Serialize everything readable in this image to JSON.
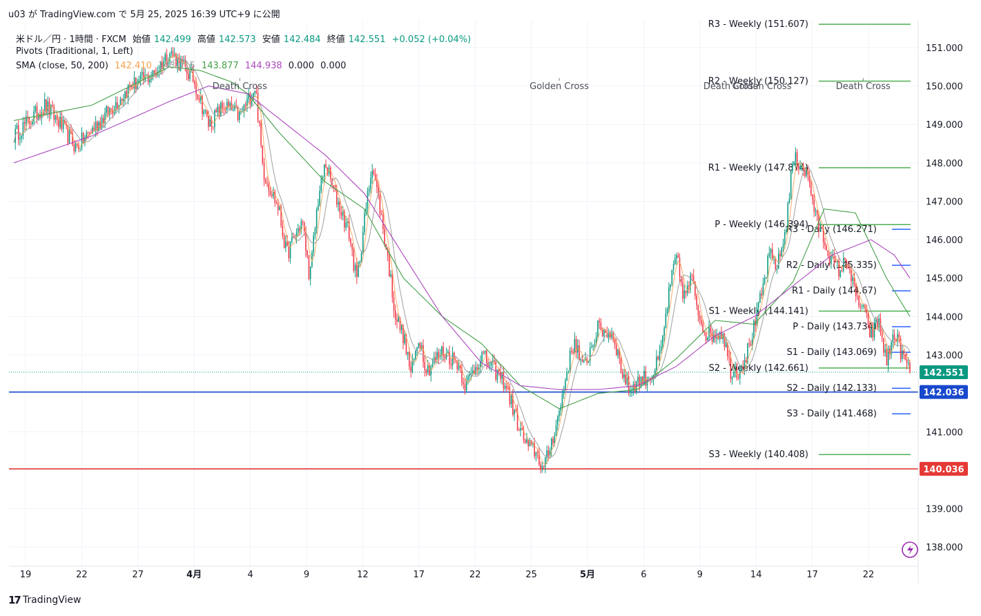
{
  "published": "u03 が TradingView.com で 5月 25, 2025 16:39 UTC+9 に公開",
  "legend": {
    "symbol": "米ドル／円 · 1時間 · FXCM",
    "open_label": "始値",
    "open": "142.499",
    "high_label": "高値",
    "high": "142.573",
    "low_label": "安値",
    "low": "142.484",
    "close_label": "終値",
    "close": "142.551",
    "change": "+0.052 (+0.04%)",
    "pivots": "Pivots (Traditional, 1, Left)",
    "sma": "SMA (close, 50, 200)",
    "sma_values": [
      "142.410",
      "143.015",
      "143.877",
      "144.938",
      "0.000",
      "0.000"
    ]
  },
  "footer": {
    "brand": "TradingView"
  },
  "colors": {
    "up": "#089981",
    "down": "#f23645",
    "pivot_weekly": "#4caf50",
    "pivot_daily": "#2962ff",
    "sma_fast": "#f7a04a",
    "sma_mid": "#9e9e9e",
    "sma_50": "#43a047",
    "sma_200": "#ab47bc",
    "support_line": "#1848cc",
    "red_line": "#e53935",
    "price_badge": "#089981"
  },
  "chart_data": {
    "type": "candlestick",
    "title": "米ドル／円 · 1時間 · FXCM",
    "ylim": [
      137.5,
      151.7
    ],
    "y_ticks": [
      "151.000",
      "150.000",
      "149.000",
      "148.000",
      "147.000",
      "146.000",
      "145.000",
      "144.000",
      "143.000",
      "142.000",
      "141.000",
      "140.000",
      "139.000",
      "138.000"
    ],
    "x_ticks": [
      {
        "label": "19",
        "bold": false
      },
      {
        "label": "22",
        "bold": false
      },
      {
        "label": "27",
        "bold": false
      },
      {
        "label": "4月",
        "bold": true
      },
      {
        "label": "4",
        "bold": false
      },
      {
        "label": "9",
        "bold": false
      },
      {
        "label": "12",
        "bold": false
      },
      {
        "label": "17",
        "bold": false
      },
      {
        "label": "22",
        "bold": false
      },
      {
        "label": "25",
        "bold": false
      },
      {
        "label": "5月",
        "bold": true
      },
      {
        "label": "6",
        "bold": false
      },
      {
        "label": "9",
        "bold": false
      },
      {
        "label": "14",
        "bold": false
      },
      {
        "label": "17",
        "bold": false
      },
      {
        "label": "22",
        "bold": false
      }
    ],
    "price_path": [
      [
        0,
        148.7
      ],
      [
        4,
        149.5
      ],
      [
        6,
        149.0
      ],
      [
        8,
        148.4
      ],
      [
        12,
        149.3
      ],
      [
        15,
        150.0
      ],
      [
        18,
        150.3
      ],
      [
        20,
        150.9
      ],
      [
        23,
        150.2
      ],
      [
        25,
        149.0
      ],
      [
        27,
        149.5
      ],
      [
        29,
        149.2
      ],
      [
        31,
        150.0
      ],
      [
        32,
        147.8
      ],
      [
        34,
        146.8
      ],
      [
        35,
        145.6
      ],
      [
        37,
        146.5
      ],
      [
        38,
        145.0
      ],
      [
        39,
        147.0
      ],
      [
        40,
        148.0
      ],
      [
        41,
        147.3
      ],
      [
        43,
        146.2
      ],
      [
        44,
        144.9
      ],
      [
        45,
        146.5
      ],
      [
        46,
        148.0
      ],
      [
        47,
        146.8
      ],
      [
        48,
        145.5
      ],
      [
        49,
        144.0
      ],
      [
        50,
        143.5
      ],
      [
        51,
        142.5
      ],
      [
        52,
        143.5
      ],
      [
        53,
        142.6
      ],
      [
        55,
        143.1
      ],
      [
        57,
        142.8
      ],
      [
        58,
        142.2
      ],
      [
        60,
        143.0
      ],
      [
        63,
        142.3
      ],
      [
        65,
        141.0
      ],
      [
        66,
        140.6
      ],
      [
        67,
        140.5
      ],
      [
        68,
        140.0
      ],
      [
        70,
        141.5
      ],
      [
        71,
        142.6
      ],
      [
        72,
        143.4
      ],
      [
        73,
        142.6
      ],
      [
        75,
        143.7
      ],
      [
        77,
        143.5
      ],
      [
        78,
        142.6
      ],
      [
        79,
        142.1
      ],
      [
        80,
        142.3
      ],
      [
        82,
        142.5
      ],
      [
        83,
        143.0
      ],
      [
        84,
        144.5
      ],
      [
        85,
        145.6
      ],
      [
        86,
        144.5
      ],
      [
        87,
        145.0
      ],
      [
        88,
        144.0
      ],
      [
        89,
        143.5
      ],
      [
        91,
        143.6
      ],
      [
        92,
        142.6
      ],
      [
        93,
        142.6
      ],
      [
        94,
        143.0
      ],
      [
        95,
        143.7
      ],
      [
        96,
        144.6
      ],
      [
        97,
        145.6
      ],
      [
        98,
        145.3
      ],
      [
        99,
        146.2
      ],
      [
        100,
        148.1
      ],
      [
        101,
        148.0
      ],
      [
        102,
        147.6
      ],
      [
        103,
        146.5
      ],
      [
        104,
        146.0
      ],
      [
        105,
        145.4
      ],
      [
        106,
        145.2
      ],
      [
        107,
        145.5
      ],
      [
        108,
        144.5
      ],
      [
        109,
        144.2
      ],
      [
        110,
        143.5
      ],
      [
        111,
        143.9
      ],
      [
        112,
        142.8
      ],
      [
        113,
        143.6
      ],
      [
        114,
        143.0
      ],
      [
        115,
        142.55
      ]
    ],
    "sma_50": [
      [
        0,
        149.1
      ],
      [
        10,
        149.5
      ],
      [
        20,
        150.5
      ],
      [
        24,
        150.4
      ],
      [
        28,
        150.1
      ],
      [
        30,
        149.8
      ],
      [
        34,
        148.8
      ],
      [
        40,
        147.5
      ],
      [
        45,
        146.8
      ],
      [
        50,
        145.0
      ],
      [
        55,
        144.0
      ],
      [
        60,
        143.3
      ],
      [
        65,
        142.2
      ],
      [
        70,
        141.6
      ],
      [
        75,
        142.0
      ],
      [
        80,
        142.1
      ],
      [
        85,
        142.9
      ],
      [
        90,
        143.9
      ],
      [
        95,
        143.8
      ],
      [
        100,
        144.9
      ],
      [
        104,
        146.8
      ],
      [
        108,
        146.7
      ],
      [
        112,
        145.0
      ],
      [
        115,
        144.0
      ]
    ],
    "sma_200": [
      [
        0,
        148.0
      ],
      [
        10,
        148.7
      ],
      [
        20,
        149.6
      ],
      [
        25,
        150.0
      ],
      [
        30,
        149.8
      ],
      [
        35,
        149.0
      ],
      [
        40,
        148.2
      ],
      [
        45,
        147.2
      ],
      [
        50,
        145.6
      ],
      [
        55,
        144.0
      ],
      [
        60,
        142.8
      ],
      [
        65,
        142.2
      ],
      [
        70,
        142.1
      ],
      [
        75,
        142.1
      ],
      [
        80,
        142.2
      ],
      [
        85,
        142.7
      ],
      [
        90,
        143.5
      ],
      [
        95,
        144.0
      ],
      [
        100,
        144.8
      ],
      [
        105,
        145.6
      ],
      [
        110,
        146.0
      ],
      [
        113,
        145.6
      ],
      [
        115,
        145.0
      ]
    ],
    "pivots": [
      {
        "label": "R3 - Weekly (151.607)",
        "value": 151.607,
        "group": "weekly"
      },
      {
        "label": "R2 - Weekly (150.127)",
        "value": 150.127,
        "group": "weekly"
      },
      {
        "label": "R1 - Weekly (147.874)",
        "value": 147.874,
        "group": "weekly"
      },
      {
        "label": "P - Weekly (146.394)",
        "value": 146.394,
        "group": "weekly"
      },
      {
        "label": "S1 - Weekly (144.141)",
        "value": 144.141,
        "group": "weekly"
      },
      {
        "label": "S2 - Weekly (142.661)",
        "value": 142.661,
        "group": "weekly"
      },
      {
        "label": "S3 - Weekly (140.408)",
        "value": 140.408,
        "group": "weekly"
      },
      {
        "label": "R3 - Daily (146.271)",
        "value": 146.271,
        "group": "daily"
      },
      {
        "label": "R2 - Daily (145.335)",
        "value": 145.335,
        "group": "daily"
      },
      {
        "label": "R1 - Daily (144.67)",
        "value": 144.67,
        "group": "daily"
      },
      {
        "label": "P - Daily (143.734)",
        "value": 143.734,
        "group": "daily"
      },
      {
        "label": "S1 - Daily (143.069)",
        "value": 143.069,
        "group": "daily"
      },
      {
        "label": "S2 - Daily (142.133)",
        "value": 142.133,
        "group": "daily"
      },
      {
        "label": "S3 - Daily (141.468)",
        "value": 141.468,
        "group": "daily"
      }
    ],
    "horizontal_lines": [
      {
        "value": 142.036,
        "label": "142.036",
        "color": "#1848cc"
      },
      {
        "value": 140.036,
        "label": "140.036",
        "color": "#e53935"
      }
    ],
    "last_price": {
      "value": 142.551,
      "label": "142.551"
    },
    "events": [
      {
        "label": "Death Cross",
        "x": 29
      },
      {
        "label": "Golden Cross",
        "x": 70
      },
      {
        "label": "Death Cross",
        "x": 92
      },
      {
        "label": "Golden Cross",
        "x": 96
      },
      {
        "label": "Death Cross",
        "x": 109
      }
    ]
  }
}
